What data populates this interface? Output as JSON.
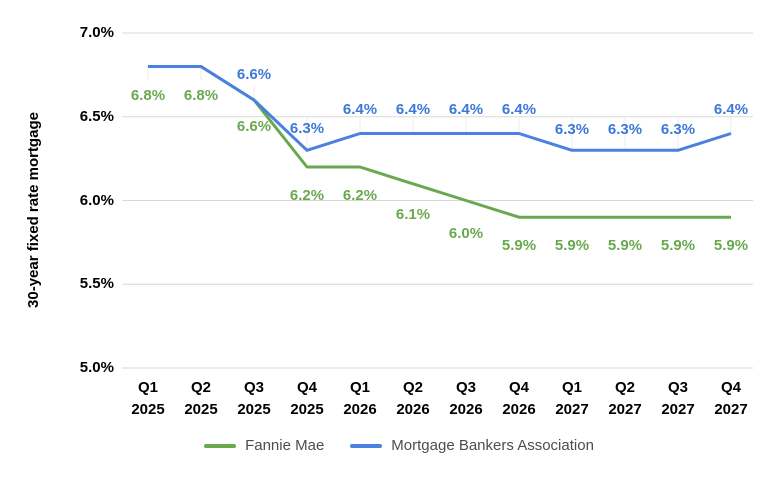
{
  "chart_data": {
    "type": "line",
    "title": "",
    "xlabel": "",
    "ylabel": "30-year fixed rate mortgage",
    "categories": [
      "Q1 2025",
      "Q2 2025",
      "Q3 2025",
      "Q4 2025",
      "Q1 2026",
      "Q2 2026",
      "Q3 2026",
      "Q4 2026",
      "Q1 2027",
      "Q2 2027",
      "Q3 2027",
      "Q4 2027"
    ],
    "series": [
      {
        "name": "Fannie Mae",
        "color": "#6aa84f",
        "label_color": "#6aa84f",
        "values": [
          6.8,
          6.8,
          6.6,
          6.2,
          6.2,
          6.1,
          6.0,
          5.9,
          5.9,
          5.9,
          5.9,
          5.9
        ],
        "data_labels": [
          "6.8%",
          "6.8%",
          "6.6%",
          "6.2%",
          "6.2%",
          "6.1%",
          "6.0%",
          "5.9%",
          "5.9%",
          "5.9%",
          "5.9%",
          "5.9%"
        ],
        "label_side": "below"
      },
      {
        "name": "Mortgage Bankers Association",
        "color": "#4a80e0",
        "label_color": "#3c78d8",
        "values": [
          6.8,
          6.8,
          6.6,
          6.3,
          6.4,
          6.4,
          6.4,
          6.4,
          6.3,
          6.3,
          6.3,
          6.4
        ],
        "data_labels": [
          null,
          null,
          "6.6%",
          "6.3%",
          "6.4%",
          "6.4%",
          "6.4%",
          "6.4%",
          "6.3%",
          "6.3%",
          "6.3%",
          "6.4%"
        ],
        "label_side": "above"
      }
    ],
    "ylim": [
      5.0,
      7.0
    ],
    "y_tick_values": [
      5.0,
      5.5,
      6.0,
      6.5,
      7.0
    ],
    "y_tick_labels": [
      "5.0%",
      "5.5%",
      "6.0%",
      "6.5%",
      "7.0%"
    ],
    "grid": "horizontal",
    "legend_position": "bottom",
    "colors": {
      "background": "#ffffff",
      "gridline": "#d9d9d9",
      "leader_tick": "#ececec",
      "axis_text": "#000000",
      "legend_text": "#4d4d4d"
    }
  }
}
